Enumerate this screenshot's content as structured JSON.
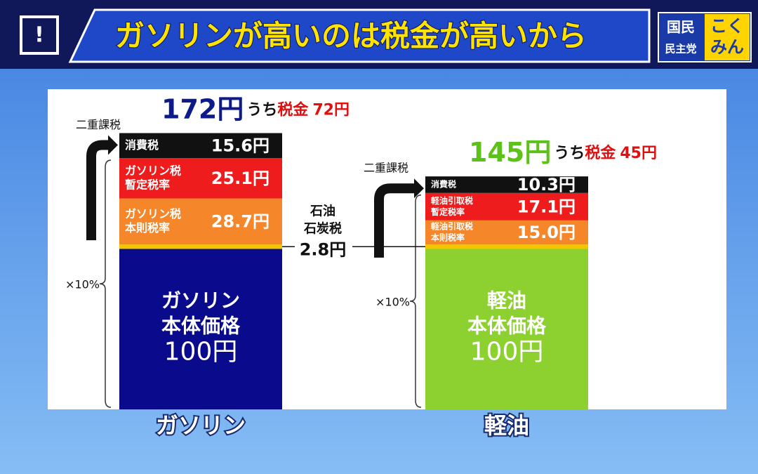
{
  "header": {
    "icon": "!",
    "title": "ガソリンが高いのは税金が高いから",
    "logo": [
      "国民",
      "民主党",
      "こく",
      "みん"
    ]
  },
  "bars": [
    {
      "name": "ガソリン",
      "total": "172円",
      "tax_prefix": "うち",
      "tax_word": "税金",
      "tax": "72円",
      "total_color": "#0d1a8a",
      "double_tax": "二重課税",
      "pct": "×10%",
      "segments": [
        {
          "value": 100,
          "color": "#0a0a8c",
          "label": [
            "ガソリン",
            "本体価格"
          ],
          "value_label": "100円"
        },
        {
          "value": 2.8,
          "color": "#f5c400"
        },
        {
          "value": 28.7,
          "color": "#f5872a",
          "label": [
            "ガソリン税",
            "本則税率"
          ],
          "value_label": "28.7円"
        },
        {
          "value": 25.1,
          "color": "#ee1c1c",
          "label": [
            "ガソリン税",
            "暫定税率"
          ],
          "value_label": "25.1円"
        },
        {
          "value": 15.6,
          "color": "#111111",
          "label": [
            "消費税"
          ],
          "value_label": "15.6円"
        }
      ]
    },
    {
      "name": "軽油",
      "total": "145円",
      "tax_prefix": "うち",
      "tax_word": "税金",
      "tax": "45円",
      "total_color": "#5cc21a",
      "double_tax": "二重課税",
      "pct": "×10%",
      "segments": [
        {
          "value": 100,
          "color": "#8cd12f",
          "label": [
            "軽油",
            "本体価格"
          ],
          "value_label": "100円"
        },
        {
          "value": 2.8,
          "color": "#f5c400"
        },
        {
          "value": 15.0,
          "color": "#f5872a",
          "label": [
            "軽油引取税",
            "本則税率"
          ],
          "value_label": "15.0円"
        },
        {
          "value": 17.1,
          "color": "#ee1c1c",
          "label": [
            "軽油引取税",
            "暫定税率"
          ],
          "value_label": "17.1円"
        },
        {
          "value": 10.3,
          "color": "#111111",
          "label": [
            "消費税"
          ],
          "value_label": "10.3円"
        }
      ]
    }
  ],
  "coal_tax": {
    "lines": [
      "石油",
      "石炭税"
    ],
    "value_label": "2.8円"
  }
}
